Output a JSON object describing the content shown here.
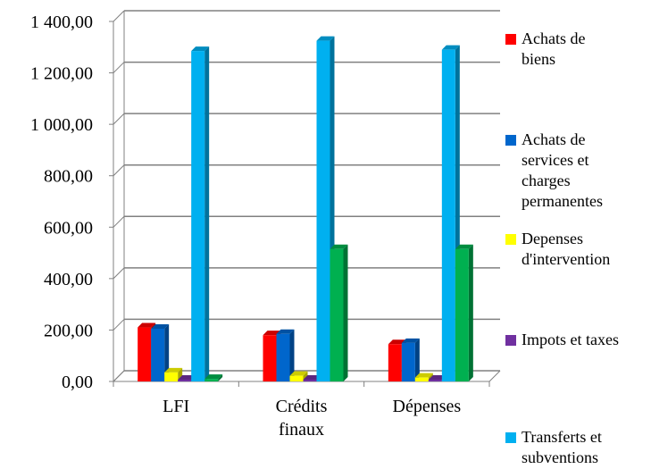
{
  "chart_data": {
    "type": "bar",
    "categories": [
      "LFI",
      "Crédits\nfinaux",
      "Dépenses"
    ],
    "series": [
      {
        "name": "Achats de biens",
        "color": "#ff0000",
        "values": [
          210,
          180,
          145
        ]
      },
      {
        "name": "Achats de services et charges permanentes",
        "color": "#0066cc",
        "values": [
          205,
          185,
          150
        ]
      },
      {
        "name": "Depenses d'intervention",
        "color": "#ffff00",
        "values": [
          35,
          22,
          15
        ]
      },
      {
        "name": "Impots et taxes",
        "color": "#7030a0",
        "values": [
          3,
          3,
          3
        ]
      },
      {
        "name": "Transferts et subventions",
        "color": "#00b0f0",
        "values": [
          1285,
          1325,
          1290
        ]
      },
      {
        "name": "",
        "color": "#00b050",
        "values": [
          10,
          515,
          515
        ]
      }
    ],
    "ylim": [
      0,
      1400
    ],
    "yticks": [
      "0,00",
      "200,00",
      "400,00",
      "600,00",
      "800,00",
      "1 000,00",
      "1 200,00",
      "1 400,00"
    ],
    "grid": true,
    "legend_position": "right"
  },
  "legend": [
    {
      "label": "Achats de\nbiens",
      "color": "#ff0000"
    },
    {
      "label": "Achats de\nservices et\ncharges\npermanentes",
      "color": "#0066cc"
    },
    {
      "label": "Depenses\nd'intervention",
      "color": "#ffff00"
    },
    {
      "label": "Impots et taxes",
      "color": "#7030a0"
    },
    {
      "label": "Transferts et\nsubventions",
      "color": "#00b0f0"
    }
  ]
}
